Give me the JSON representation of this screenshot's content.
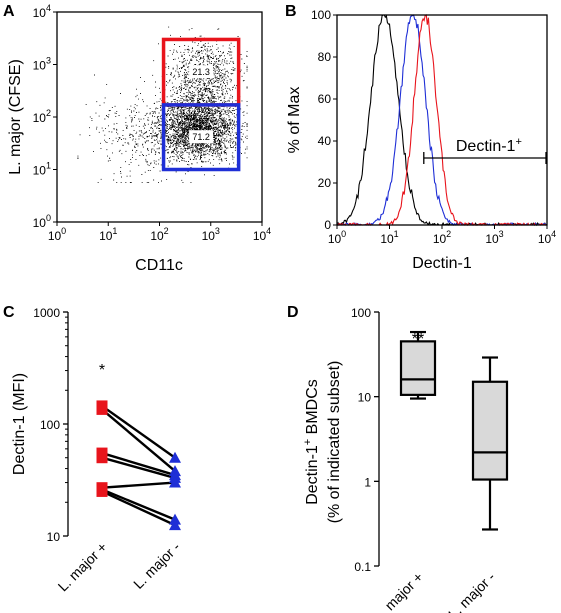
{
  "chart_data": [
    {
      "panel": "A",
      "type": "scatter",
      "xlabel": "CD11c",
      "ylabel": "L. major (CFSE)",
      "xscale": "log",
      "yscale": "log",
      "xlim": [
        1,
        10000
      ],
      "ylim": [
        1,
        10000
      ],
      "xticks": [
        {
          "base": "10",
          "exp": "0",
          "v": 1
        },
        {
          "base": "10",
          "exp": "1",
          "v": 10
        },
        {
          "base": "10",
          "exp": "2",
          "v": 100
        },
        {
          "base": "10",
          "exp": "3",
          "v": 1000
        },
        {
          "base": "10",
          "exp": "4",
          "v": 10000
        }
      ],
      "yticks": [
        {
          "base": "10",
          "exp": "0",
          "v": 1
        },
        {
          "base": "10",
          "exp": "1",
          "v": 10
        },
        {
          "base": "10",
          "exp": "2",
          "v": 100
        },
        {
          "base": "10",
          "exp": "3",
          "v": 1000
        },
        {
          "base": "10",
          "exp": "4",
          "v": 10000
        }
      ],
      "gates": [
        {
          "x": [
            120,
            3500
          ],
          "y": [
            170,
            3000
          ],
          "color": "#e8141c",
          "label": "21.3"
        },
        {
          "x": [
            120,
            3500
          ],
          "y": [
            10,
            170
          ],
          "color": "#1f2fd6",
          "label": "71.2"
        }
      ]
    },
    {
      "panel": "B",
      "type": "line",
      "xlabel": "Dectin-1",
      "ylabel": "% of Max",
      "xscale": "log",
      "xlim": [
        1,
        10000
      ],
      "ylim": [
        0,
        100
      ],
      "xticks": [
        {
          "base": "10",
          "exp": "0",
          "v": 1
        },
        {
          "base": "10",
          "exp": "1",
          "v": 10
        },
        {
          "base": "10",
          "exp": "2",
          "v": 100
        },
        {
          "base": "10",
          "exp": "3",
          "v": 1000
        },
        {
          "base": "10",
          "exp": "4",
          "v": 10000
        }
      ],
      "yticks": [
        0,
        20,
        40,
        60,
        80,
        100
      ],
      "series": [
        {
          "color": "#000000",
          "peak": 8,
          "width": 0.26
        },
        {
          "color": "#1f2fd6",
          "peak": 28,
          "width": 0.24
        },
        {
          "color": "#e8141c",
          "peak": 48,
          "width": 0.21
        }
      ],
      "gate": {
        "label": "Dectin-1",
        "sup": "+",
        "x": [
          45,
          10000
        ]
      }
    },
    {
      "panel": "C",
      "type": "scatter",
      "ylabel": "Dectin-1 (MFI)",
      "yscale": "log",
      "ylim": [
        10,
        1000
      ],
      "yticks": [
        "10",
        "100",
        "1000"
      ],
      "categories": [
        "L. major +",
        "L. major -"
      ],
      "pairs": [
        [
          145,
          50
        ],
        [
          135,
          38
        ],
        [
          55,
          35
        ],
        [
          50,
          33
        ],
        [
          27,
          30
        ],
        [
          26,
          14
        ],
        [
          25,
          12.5
        ]
      ],
      "significance": "*"
    },
    {
      "panel": "D",
      "type": "box",
      "ylabel": "Dectin-1⁺ BMDCs",
      "ylabel2": "(% of indicated subset)",
      "ylabel_line1_main": "Dectin-1",
      "ylabel_line1_sup": "+",
      "ylabel_line1_rest": " BMDCs",
      "yscale": "log",
      "ylim": [
        0.1,
        100
      ],
      "yticks": [
        "0.1",
        "1",
        "10",
        "100"
      ],
      "categories": [
        "L. major +",
        "L. major -"
      ],
      "boxes": [
        {
          "min": 9.5,
          "q1": 10.5,
          "median": 16,
          "q3": 45,
          "max": 58
        },
        {
          "min": 0.27,
          "q1": 1.05,
          "median": 2.2,
          "q3": 15,
          "max": 29
        }
      ],
      "significance": "**"
    }
  ],
  "colors": {
    "red": "#e8141c",
    "blue": "#1f2fd6",
    "black": "#000000",
    "box_fill": "#d9d9d9"
  }
}
